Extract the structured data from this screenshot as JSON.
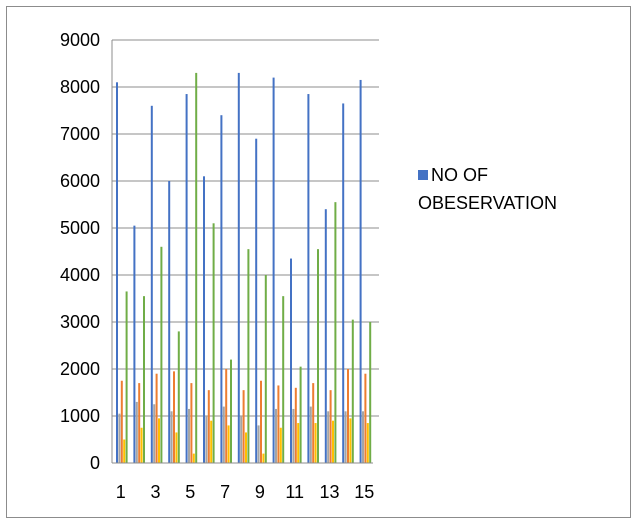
{
  "chart_data": {
    "type": "bar",
    "categories": [
      "1",
      "2",
      "3",
      "4",
      "5",
      "6",
      "7",
      "8",
      "9",
      "10",
      "11",
      "12",
      "13",
      "14",
      "15"
    ],
    "x_tick_labels": [
      "1",
      "3",
      "5",
      "7",
      "9",
      "11",
      "13",
      "15"
    ],
    "y_tick_labels": [
      "0",
      "1000",
      "2000",
      "3000",
      "4000",
      "5000",
      "6000",
      "7000",
      "8000",
      "9000"
    ],
    "ylim": [
      0,
      9000
    ],
    "grid": true,
    "legend_position": "right",
    "legend_lines": [
      "NO OF",
      "OBESERVATION"
    ],
    "series": [
      {
        "name": "NO OF OBESERVATION",
        "color": "#4472c4",
        "values": [
          8100,
          5050,
          7600,
          6000,
          7850,
          6100,
          7400,
          8300,
          6900,
          8200,
          4350,
          7850,
          5400,
          7650,
          8150
        ]
      },
      {
        "color": "#a5a5a5",
        "values": [
          1050,
          1300,
          1250,
          1100,
          1150,
          1000,
          1200,
          1000,
          800,
          1150,
          1150,
          1200,
          1100,
          1100,
          1100
        ]
      },
      {
        "color": "#ed7d31",
        "values": [
          1750,
          1700,
          1900,
          1950,
          1700,
          1550,
          2000,
          1550,
          1750,
          1650,
          1600,
          1700,
          1550,
          2000,
          1900
        ]
      },
      {
        "color": "#ffc000",
        "values": [
          500,
          750,
          950,
          650,
          200,
          900,
          800,
          650,
          200,
          750,
          850,
          850,
          900,
          950,
          850
        ]
      },
      {
        "color": "#70ad47",
        "values": [
          3650,
          3550,
          4600,
          2800,
          8300,
          5100,
          2200,
          4550,
          4000,
          3550,
          2050,
          4550,
          5550,
          3050,
          3000
        ]
      }
    ]
  }
}
